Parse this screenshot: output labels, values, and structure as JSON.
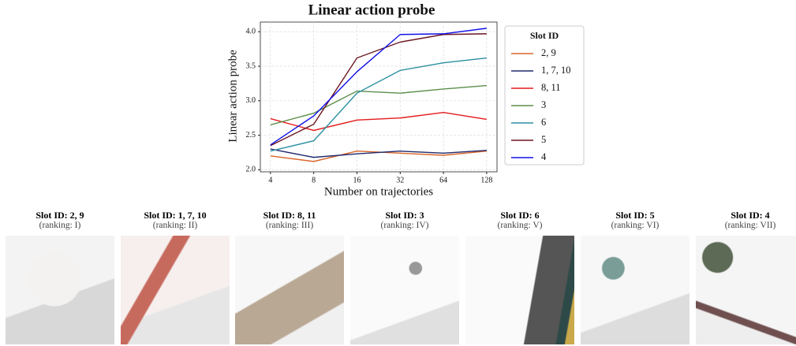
{
  "chart_data": {
    "type": "line",
    "title": "Linear action probe",
    "x_label": "Number on trajectories",
    "y_label": "Linear action probe",
    "x": [
      4,
      8,
      16,
      32,
      64,
      128
    ],
    "xlim": [
      3.4,
      151
    ],
    "xticks": [
      4,
      8,
      16,
      32,
      64,
      128
    ],
    "log_x": 2,
    "ylim": [
      1.97,
      4.14
    ],
    "yticks": [
      {
        "value": 2.0,
        "label": "2.0"
      },
      {
        "value": 2.5,
        "label": "2.5"
      },
      {
        "value": 3.0,
        "label": "3.0"
      },
      {
        "value": 3.5,
        "label": "3.5"
      },
      {
        "value": 4.0,
        "label": "4.0"
      }
    ],
    "grid": true,
    "legend_title": "Slot ID",
    "legend": "outside-right",
    "series": [
      {
        "name": "2, 9",
        "color": "#d9662a",
        "values": [
          2.2,
          2.12,
          2.27,
          2.24,
          2.21,
          2.27
        ]
      },
      {
        "name": "1, 7, 10",
        "color": "#1f2a6e",
        "values": [
          2.3,
          2.18,
          2.23,
          2.27,
          2.24,
          2.28
        ]
      },
      {
        "name": "8, 11",
        "color": "#e41a1c",
        "values": [
          2.74,
          2.57,
          2.72,
          2.75,
          2.83,
          2.73
        ]
      },
      {
        "name": "3",
        "color": "#5a8f4a",
        "values": [
          2.65,
          2.82,
          3.14,
          3.11,
          3.17,
          3.22
        ]
      },
      {
        "name": "6",
        "color": "#2a8fa0",
        "values": [
          2.27,
          2.42,
          3.11,
          3.44,
          3.55,
          3.62
        ]
      },
      {
        "name": "5",
        "color": "#6b1520",
        "values": [
          2.35,
          2.66,
          3.62,
          3.85,
          3.96,
          3.97
        ]
      },
      {
        "name": "4",
        "color": "#1010e8",
        "values": [
          2.36,
          2.78,
          3.42,
          3.96,
          3.97,
          4.05
        ]
      }
    ]
  },
  "panels": [
    {
      "title": "Slot ID: 2, 9",
      "subtitle": "(ranking: I)"
    },
    {
      "title": "Slot ID: 1, 7, 10",
      "subtitle": "(ranking: II)"
    },
    {
      "title": "Slot ID: 8, 11",
      "subtitle": "(ranking: III)"
    },
    {
      "title": "Slot ID: 3",
      "subtitle": "(ranking: IV)"
    },
    {
      "title": "Slot ID: 6",
      "subtitle": "(ranking: V)"
    },
    {
      "title": "Slot ID: 5",
      "subtitle": "(ranking: VI)"
    },
    {
      "title": "Slot ID: 4",
      "subtitle": "(ranking: VII)"
    }
  ]
}
